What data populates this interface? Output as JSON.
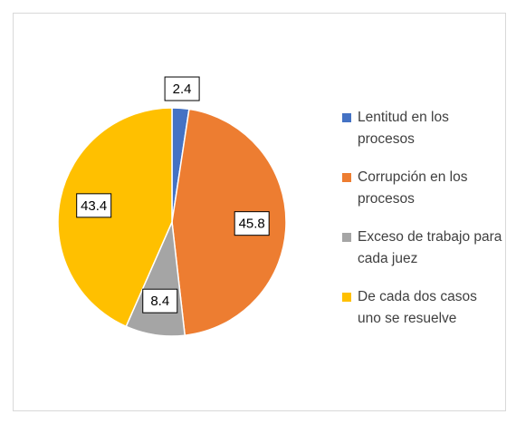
{
  "chart_data": {
    "type": "pie",
    "categories": [
      "Lentitud en los procesos",
      "Corrupción en los procesos",
      "Exceso de trabajo para cada juez",
      "De cada dos casos uno se resuelve"
    ],
    "values": [
      2.4,
      45.8,
      8.4,
      43.4
    ],
    "colors": [
      "#4472c4",
      "#ed7d31",
      "#a5a5a5",
      "#ffc000"
    ],
    "legend": "right"
  }
}
